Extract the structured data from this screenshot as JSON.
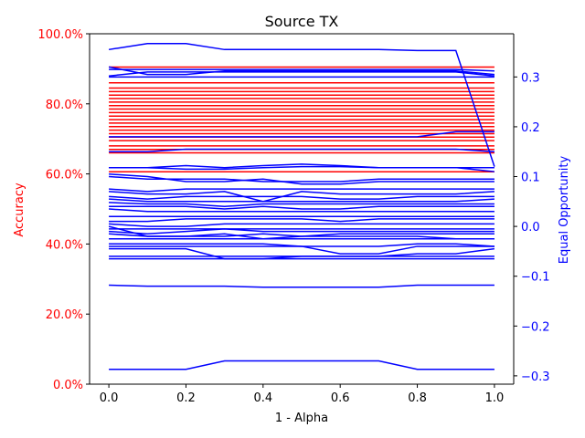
{
  "chart_data": {
    "type": "line",
    "title": "Source TX",
    "xlabel": "1 - Alpha",
    "ylabel_left": "Accuracy",
    "ylabel_right": "Equal Opportunity",
    "xlim": [
      -0.05,
      1.05
    ],
    "ylim_left": [
      0.0,
      1.0
    ],
    "ylim_right": [
      -0.3167,
      0.3867
    ],
    "x": [
      0.0,
      0.1,
      0.2,
      0.3,
      0.4,
      0.5,
      0.6,
      0.7,
      0.8,
      0.9,
      1.0
    ],
    "x_ticks": [
      "0.0",
      "0.2",
      "0.4",
      "0.6",
      "0.8",
      "1.0"
    ],
    "y_left_ticks": [
      {
        "value": 0.0,
        "label": "0.0%"
      },
      {
        "value": 0.2,
        "label": "20.0%"
      },
      {
        "value": 0.4,
        "label": "40.0%"
      },
      {
        "value": 0.6,
        "label": "60.0%"
      },
      {
        "value": 0.8,
        "label": "80.0%"
      },
      {
        "value": 1.0,
        "label": "100.0%"
      }
    ],
    "y_right_ticks": [
      {
        "value": -0.3,
        "label": "−0.3"
      },
      {
        "value": -0.2,
        "label": "−0.2"
      },
      {
        "value": -0.1,
        "label": "−0.1"
      },
      {
        "value": 0.0,
        "label": "0.0"
      },
      {
        "value": 0.1,
        "label": "0.1"
      },
      {
        "value": 0.2,
        "label": "0.2"
      },
      {
        "value": 0.3,
        "label": "0.3"
      }
    ],
    "accuracy_color": "#ff0000",
    "eo_color": "#0000ff",
    "accuracy_series": [
      {
        "values": [
          0.905,
          0.905,
          0.905,
          0.905,
          0.905,
          0.905,
          0.905,
          0.905,
          0.905,
          0.905,
          0.905
        ]
      },
      {
        "values": [
          0.86,
          0.86,
          0.86,
          0.86,
          0.86,
          0.86,
          0.86,
          0.86,
          0.86,
          0.86,
          0.86
        ]
      },
      {
        "values": [
          0.845,
          0.845,
          0.845,
          0.845,
          0.845,
          0.845,
          0.845,
          0.845,
          0.845,
          0.845,
          0.845
        ]
      },
      {
        "values": [
          0.835,
          0.835,
          0.835,
          0.835,
          0.835,
          0.835,
          0.835,
          0.835,
          0.835,
          0.835,
          0.835
        ]
      },
      {
        "values": [
          0.825,
          0.825,
          0.825,
          0.825,
          0.825,
          0.825,
          0.825,
          0.825,
          0.825,
          0.825,
          0.825
        ]
      },
      {
        "values": [
          0.815,
          0.815,
          0.815,
          0.815,
          0.815,
          0.815,
          0.815,
          0.815,
          0.815,
          0.815,
          0.815
        ]
      },
      {
        "values": [
          0.805,
          0.805,
          0.805,
          0.805,
          0.805,
          0.805,
          0.805,
          0.805,
          0.805,
          0.805,
          0.805
        ]
      },
      {
        "values": [
          0.795,
          0.795,
          0.795,
          0.795,
          0.795,
          0.795,
          0.795,
          0.795,
          0.795,
          0.795,
          0.795
        ]
      },
      {
        "values": [
          0.785,
          0.785,
          0.785,
          0.785,
          0.785,
          0.785,
          0.785,
          0.785,
          0.785,
          0.785,
          0.785
        ]
      },
      {
        "values": [
          0.775,
          0.775,
          0.775,
          0.775,
          0.775,
          0.775,
          0.775,
          0.775,
          0.775,
          0.775,
          0.775
        ]
      },
      {
        "values": [
          0.765,
          0.765,
          0.765,
          0.765,
          0.765,
          0.765,
          0.765,
          0.765,
          0.765,
          0.765,
          0.765
        ]
      },
      {
        "values": [
          0.755,
          0.755,
          0.755,
          0.755,
          0.755,
          0.755,
          0.755,
          0.755,
          0.755,
          0.755,
          0.755
        ]
      },
      {
        "values": [
          0.745,
          0.745,
          0.745,
          0.745,
          0.745,
          0.745,
          0.745,
          0.745,
          0.745,
          0.745,
          0.745
        ]
      },
      {
        "values": [
          0.735,
          0.735,
          0.735,
          0.735,
          0.735,
          0.735,
          0.735,
          0.735,
          0.735,
          0.735,
          0.735
        ]
      },
      {
        "values": [
          0.725,
          0.725,
          0.725,
          0.725,
          0.725,
          0.725,
          0.725,
          0.725,
          0.725,
          0.725,
          0.725
        ]
      },
      {
        "values": [
          0.715,
          0.715,
          0.715,
          0.715,
          0.715,
          0.715,
          0.715,
          0.715,
          0.715,
          0.715,
          0.715
        ]
      },
      {
        "values": [
          0.705,
          0.705,
          0.705,
          0.705,
          0.705,
          0.705,
          0.705,
          0.705,
          0.705,
          0.705,
          0.705
        ]
      },
      {
        "values": [
          0.695,
          0.695,
          0.695,
          0.695,
          0.695,
          0.695,
          0.695,
          0.695,
          0.695,
          0.695,
          0.695
        ]
      },
      {
        "values": [
          0.68,
          0.68,
          0.68,
          0.68,
          0.68,
          0.68,
          0.68,
          0.68,
          0.68,
          0.68,
          0.68
        ]
      },
      {
        "values": [
          0.67,
          0.67,
          0.67,
          0.67,
          0.67,
          0.67,
          0.67,
          0.67,
          0.67,
          0.67,
          0.67
        ]
      },
      {
        "values": [
          0.66,
          0.66,
          0.66,
          0.66,
          0.66,
          0.66,
          0.66,
          0.66,
          0.66,
          0.66,
          0.66
        ]
      },
      {
        "values": [
          0.606,
          0.606,
          0.606,
          0.606,
          0.606,
          0.606,
          0.606,
          0.606,
          0.606,
          0.606,
          0.606
        ]
      }
    ],
    "eo_series": [
      {
        "values": [
          0.355,
          0.367,
          0.367,
          0.355,
          0.355,
          0.355,
          0.355,
          0.355,
          0.353,
          0.353,
          0.12
        ]
      },
      {
        "values": [
          0.315,
          0.315,
          0.315,
          0.315,
          0.315,
          0.315,
          0.315,
          0.315,
          0.315,
          0.315,
          0.312
        ]
      },
      {
        "values": [
          0.32,
          0.305,
          0.305,
          0.312,
          0.312,
          0.312,
          0.312,
          0.312,
          0.312,
          0.312,
          0.305
        ]
      },
      {
        "values": [
          0.302,
          0.31,
          0.31,
          0.31,
          0.31,
          0.31,
          0.31,
          0.31,
          0.31,
          0.31,
          0.302
        ]
      },
      {
        "values": [
          0.3,
          0.3,
          0.3,
          0.3,
          0.3,
          0.3,
          0.3,
          0.3,
          0.3,
          0.3,
          0.3
        ]
      },
      {
        "values": [
          0.18,
          0.18,
          0.18,
          0.18,
          0.18,
          0.18,
          0.18,
          0.18,
          0.18,
          0.19,
          0.19
        ]
      },
      {
        "values": [
          0.15,
          0.15,
          0.155,
          0.155,
          0.155,
          0.155,
          0.155,
          0.155,
          0.155,
          0.155,
          0.15
        ]
      },
      {
        "values": [
          0.118,
          0.118,
          0.122,
          0.118,
          0.122,
          0.125,
          0.122,
          0.118,
          0.118,
          0.118,
          0.118
        ]
      },
      {
        "values": [
          0.118,
          0.118,
          0.115,
          0.115,
          0.118,
          0.12,
          0.12,
          0.118,
          0.118,
          0.118,
          0.11
        ]
      },
      {
        "values": [
          0.105,
          0.1,
          0.09,
          0.09,
          0.095,
          0.085,
          0.085,
          0.09,
          0.09,
          0.09,
          0.09
        ]
      },
      {
        "values": [
          0.1,
          0.095,
          0.095,
          0.095,
          0.09,
          0.09,
          0.09,
          0.095,
          0.095,
          0.095,
          0.095
        ]
      },
      {
        "values": [
          0.075,
          0.07,
          0.075,
          0.075,
          0.075,
          0.075,
          0.075,
          0.075,
          0.075,
          0.075,
          0.075
        ]
      },
      {
        "values": [
          0.07,
          0.065,
          0.065,
          0.07,
          0.05,
          0.07,
          0.065,
          0.065,
          0.065,
          0.065,
          0.07
        ]
      },
      {
        "values": [
          0.06,
          0.055,
          0.06,
          0.06,
          0.06,
          0.06,
          0.055,
          0.055,
          0.06,
          0.06,
          0.06
        ]
      },
      {
        "values": [
          0.055,
          0.05,
          0.05,
          0.05,
          0.05,
          0.05,
          0.05,
          0.05,
          0.05,
          0.05,
          0.055
        ]
      },
      {
        "values": [
          0.048,
          0.045,
          0.045,
          0.04,
          0.045,
          0.045,
          0.045,
          0.045,
          0.045,
          0.045,
          0.045
        ]
      },
      {
        "values": [
          0.04,
          0.04,
          0.04,
          0.035,
          0.04,
          0.035,
          0.035,
          0.04,
          0.04,
          0.04,
          0.04
        ]
      },
      {
        "values": [
          0.035,
          0.03,
          0.03,
          0.03,
          0.03,
          0.03,
          0.03,
          0.03,
          0.03,
          0.03,
          0.03
        ]
      },
      {
        "values": [
          0.02,
          0.02,
          0.02,
          0.02,
          0.02,
          0.02,
          0.02,
          0.02,
          0.02,
          0.02,
          0.02
        ]
      },
      {
        "values": [
          0.01,
          0.01,
          0.015,
          0.015,
          0.015,
          0.015,
          0.01,
          0.015,
          0.015,
          0.015,
          0.015
        ]
      },
      {
        "values": [
          0.005,
          0.0,
          0.0,
          0.005,
          0.005,
          0.005,
          0.005,
          0.005,
          0.005,
          0.005,
          0.005
        ]
      },
      {
        "values": [
          -0.005,
          -0.005,
          -0.005,
          -0.005,
          -0.005,
          -0.005,
          -0.005,
          -0.005,
          -0.005,
          -0.005,
          -0.005
        ]
      },
      {
        "values": [
          -0.01,
          -0.015,
          -0.01,
          -0.005,
          -0.01,
          -0.01,
          -0.01,
          -0.01,
          -0.01,
          -0.01,
          -0.01
        ]
      },
      {
        "values": [
          -0.015,
          -0.02,
          -0.02,
          -0.02,
          -0.015,
          -0.02,
          -0.015,
          -0.015,
          -0.015,
          -0.015,
          -0.015
        ]
      },
      {
        "values": [
          0.0,
          -0.02,
          -0.02,
          -0.015,
          -0.025,
          -0.02,
          -0.02,
          -0.02,
          -0.02,
          -0.025,
          -0.025
        ]
      },
      {
        "values": [
          -0.025,
          -0.025,
          -0.025,
          -0.025,
          -0.025,
          -0.025,
          -0.025,
          -0.025,
          -0.025,
          -0.025,
          -0.025
        ]
      },
      {
        "values": [
          -0.035,
          -0.035,
          -0.035,
          -0.035,
          -0.035,
          -0.04,
          -0.04,
          -0.04,
          -0.035,
          -0.035,
          -0.04
        ]
      },
      {
        "values": [
          -0.04,
          -0.04,
          -0.04,
          -0.04,
          -0.04,
          -0.04,
          -0.055,
          -0.055,
          -0.04,
          -0.04,
          -0.04
        ]
      },
      {
        "values": [
          -0.045,
          -0.045,
          -0.045,
          -0.065,
          -0.065,
          -0.06,
          -0.06,
          -0.06,
          -0.055,
          -0.055,
          -0.045
        ]
      },
      {
        "values": [
          -0.06,
          -0.06,
          -0.06,
          -0.06,
          -0.06,
          -0.06,
          -0.06,
          -0.06,
          -0.06,
          -0.06,
          -0.06
        ]
      },
      {
        "values": [
          -0.065,
          -0.065,
          -0.065,
          -0.065,
          -0.065,
          -0.065,
          -0.065,
          -0.065,
          -0.065,
          -0.065,
          -0.065
        ]
      },
      {
        "values": [
          -0.118,
          -0.12,
          -0.12,
          -0.12,
          -0.122,
          -0.122,
          -0.122,
          -0.122,
          -0.118,
          -0.118,
          -0.118
        ]
      },
      {
        "values": [
          -0.287,
          -0.287,
          -0.287,
          -0.27,
          -0.27,
          -0.27,
          -0.27,
          -0.27,
          -0.287,
          -0.287,
          -0.287
        ]
      }
    ]
  }
}
